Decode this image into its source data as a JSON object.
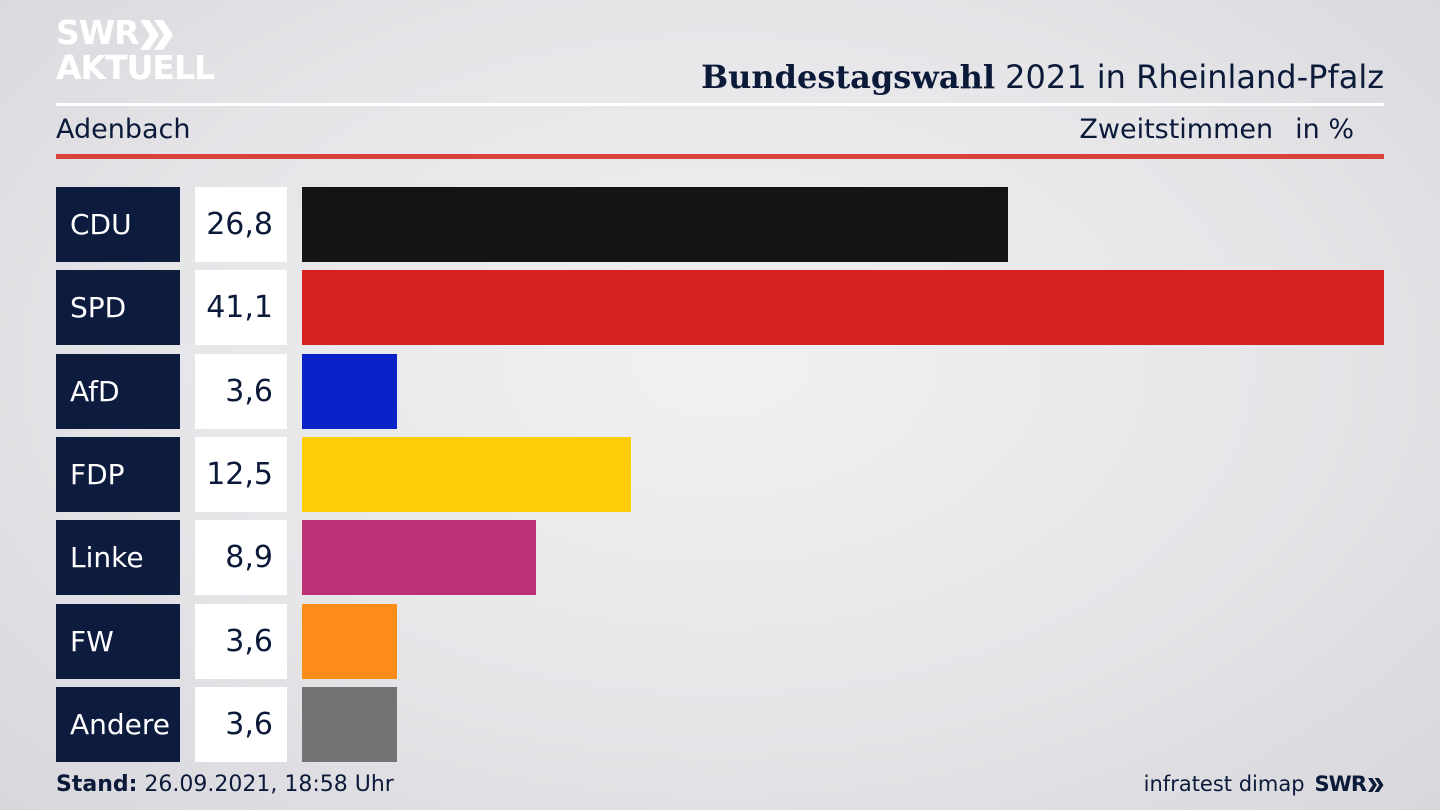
{
  "logo": {
    "line1": "SWR",
    "line2": "AKTUELL"
  },
  "header": {
    "title_bold": "Bundestagswahl",
    "title_rest": " 2021 in Rheinland-Pfalz",
    "region": "Adenbach",
    "measure": "Zweitstimmen",
    "unit": "in %"
  },
  "chart_data": {
    "type": "bar",
    "orientation": "horizontal",
    "categories": [
      "CDU",
      "SPD",
      "AfD",
      "FDP",
      "Linke",
      "FW",
      "Andere"
    ],
    "values": [
      26.8,
      41.1,
      3.6,
      12.5,
      8.9,
      3.6,
      3.6
    ],
    "labels": [
      "26,8",
      "41,1",
      "3,6",
      "12,5",
      "8,9",
      "3,6",
      "3,6"
    ],
    "colors": [
      "#141414",
      "#d72020",
      "#0a22c8",
      "#fecd0a",
      "#be3075",
      "#fd8c19",
      "#737373"
    ],
    "xlim": [
      0,
      41.1
    ],
    "title": "Bundestagswahl 2021 in Rheinland-Pfalz",
    "xlabel": "",
    "ylabel": ""
  },
  "footer": {
    "stand_label": "Stand:",
    "stand_value": " 26.09.2021, 18:58 Uhr",
    "source": "infratest dimap",
    "brand": "SWR"
  }
}
